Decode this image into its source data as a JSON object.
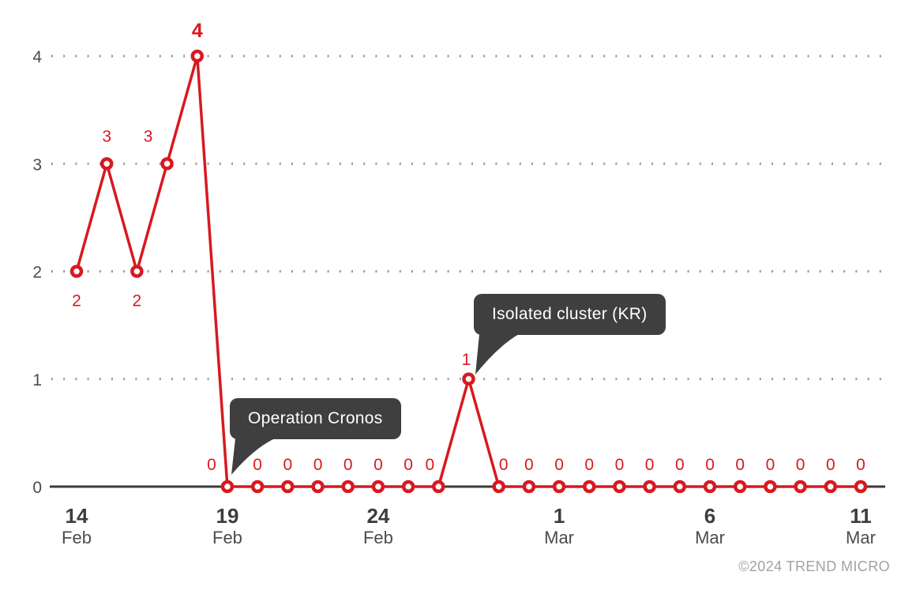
{
  "chart_data": {
    "type": "line",
    "title": "",
    "xlabel": "",
    "ylabel": "",
    "x": [
      "Feb 14",
      "Feb 15",
      "Feb 16",
      "Feb 17",
      "Feb 18",
      "Feb 19",
      "Feb 20",
      "Feb 21",
      "Feb 22",
      "Feb 23",
      "Feb 24",
      "Feb 25",
      "Feb 26",
      "Feb 27",
      "Feb 28",
      "Feb 29",
      "Mar 1",
      "Mar 2",
      "Mar 3",
      "Mar 4",
      "Mar 5",
      "Mar 6",
      "Mar 7",
      "Mar 8",
      "Mar 9",
      "Mar 10",
      "Mar 11"
    ],
    "values": [
      2,
      3,
      2,
      3,
      4,
      0,
      0,
      0,
      0,
      0,
      0,
      0,
      0,
      1,
      0,
      0,
      0,
      0,
      0,
      0,
      0,
      0,
      0,
      0,
      0,
      0,
      0
    ],
    "ylim": [
      0,
      4
    ],
    "y_ticks": [
      "0",
      "1",
      "2",
      "3",
      "4"
    ],
    "x_ticks": [
      {
        "index": 0,
        "day": "14",
        "month": "Feb"
      },
      {
        "index": 5,
        "day": "19",
        "month": "Feb"
      },
      {
        "index": 10,
        "day": "24",
        "month": "Feb"
      },
      {
        "index": 16,
        "day": "1",
        "month": "Mar"
      },
      {
        "index": 21,
        "day": "6",
        "month": "Mar"
      },
      {
        "index": 26,
        "day": "11",
        "month": "Mar"
      }
    ],
    "grid": "horizontal dotted lines at y=1..4, no vertical grid",
    "legend": "none",
    "point_labels_shown": true,
    "annotations": [
      {
        "text": "Operation Cronos",
        "point_index": 5
      },
      {
        "text": "Isolated cluster (KR)",
        "point_index": 13
      }
    ]
  },
  "footer": {
    "copyright": "©2024 TREND MICRO"
  },
  "colors": {
    "accent": "#d71920",
    "axis": "#3a3a3a",
    "grid_dot": "#979797",
    "y_label": "#4b4b4b",
    "x_day_label": "#3d3d3d",
    "x_month_label": "#4c4c4c",
    "callout_bg": "#3f3f3f",
    "callout_text": "#ffffff",
    "footer_text": "#a2a2a2",
    "marker_fill": "#ffffff"
  }
}
